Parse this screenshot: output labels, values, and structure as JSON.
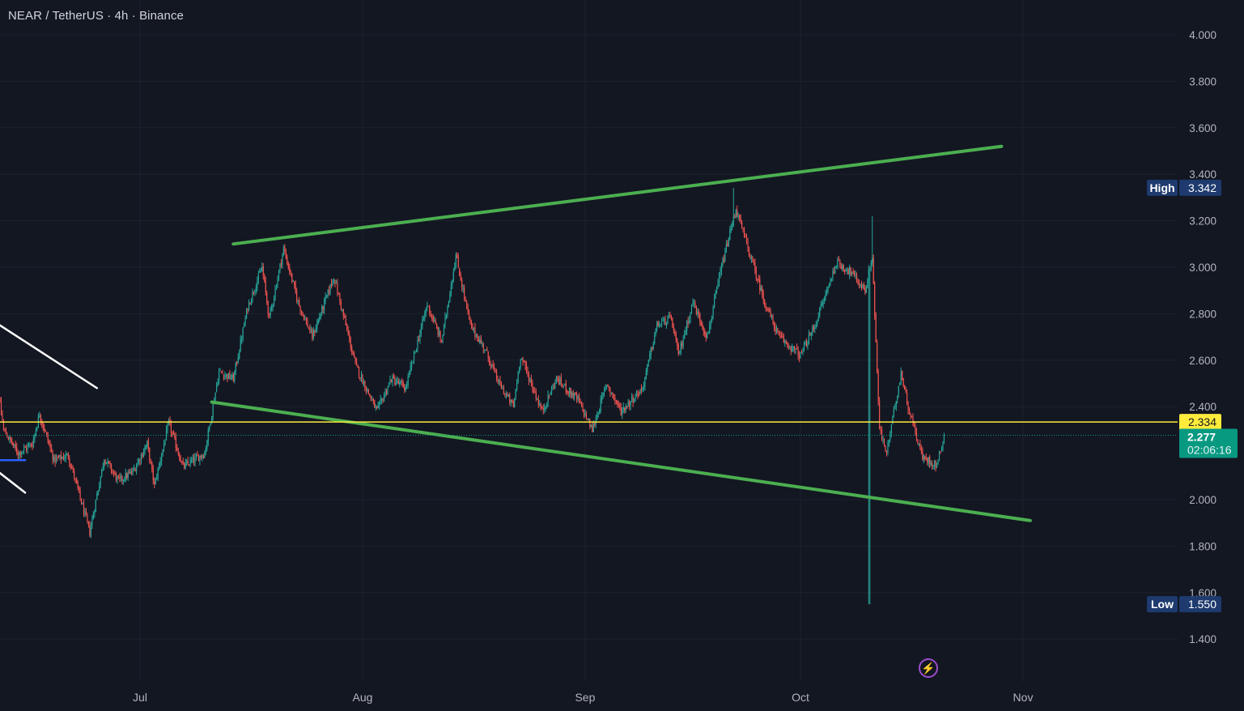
{
  "header": {
    "symbol_title": "NEAR / TetherUS · 4h · Binance"
  },
  "price_axis": {
    "ticks": [
      "4.000",
      "3.800",
      "3.600",
      "3.400",
      "3.200",
      "3.000",
      "2.800",
      "2.600",
      "2.400",
      "2.000",
      "1.800",
      "1.600",
      "1.400"
    ]
  },
  "time_axis": {
    "ticks": [
      "Jul",
      "Aug",
      "Sep",
      "Oct",
      "Nov"
    ]
  },
  "badges": {
    "high_label": "High",
    "high_value": "3.342",
    "low_label": "Low",
    "low_value": "1.550",
    "level_value": "2.334",
    "last_price": "2.277",
    "countdown": "02:06:16"
  },
  "flash_icon": "lightning-icon",
  "colors": {
    "background": "#131722",
    "grid": "#1e222d",
    "axis_text": "#b2b5be",
    "candle_up": "#26a69a",
    "candle_down": "#ef5350",
    "channel_line": "#4caf50",
    "level_line": "#ffeb3b",
    "trend_line_white": "#ffffff",
    "last_price_bg": "#089981",
    "hl_badge_bg": "#1e3a6e"
  },
  "chart_data": {
    "type": "candlestick",
    "symbol": "NEAR/USDT",
    "interval": "4h",
    "exchange": "Binance",
    "x_ticks": [
      "Jul",
      "Aug",
      "Sep",
      "Oct",
      "Nov"
    ],
    "y_ticks": [
      1.4,
      1.6,
      1.8,
      2.0,
      2.4,
      2.6,
      2.8,
      3.0,
      3.2,
      3.4,
      3.6,
      3.8,
      4.0
    ],
    "ylim": [
      1.33,
      4.08
    ],
    "period_high": 3.342,
    "period_low": 1.55,
    "last_price": 2.277,
    "horizontal_level": 2.334,
    "close_path": [
      {
        "d": "Jun 10",
        "p": 2.72
      },
      {
        "d": "Jun 12",
        "p": 2.3
      },
      {
        "d": "Jun 14",
        "p": 2.2
      },
      {
        "d": "Jun 16",
        "p": 2.24
      },
      {
        "d": "Jun 17",
        "p": 2.37
      },
      {
        "d": "Jun 19",
        "p": 2.17
      },
      {
        "d": "Jun 21",
        "p": 2.19
      },
      {
        "d": "Jun 24",
        "p": 1.86
      },
      {
        "d": "Jun 26",
        "p": 2.18
      },
      {
        "d": "Jun 28",
        "p": 2.08
      },
      {
        "d": "Jun 30",
        "p": 2.12
      },
      {
        "d": "Jul 2",
        "p": 2.24
      },
      {
        "d": "Jul 3",
        "p": 2.06
      },
      {
        "d": "Jul 5",
        "p": 2.33
      },
      {
        "d": "Jul 7",
        "p": 2.14
      },
      {
        "d": "Jul 10",
        "p": 2.2
      },
      {
        "d": "Jul 12",
        "p": 2.55
      },
      {
        "d": "Jul 14",
        "p": 2.52
      },
      {
        "d": "Jul 16",
        "p": 2.83
      },
      {
        "d": "Jul 18",
        "p": 3.0
      },
      {
        "d": "Jul 19",
        "p": 2.78
      },
      {
        "d": "Jul 21",
        "p": 3.08
      },
      {
        "d": "Jul 23",
        "p": 2.85
      },
      {
        "d": "Jul 25",
        "p": 2.7
      },
      {
        "d": "Jul 28",
        "p": 2.96
      },
      {
        "d": "Jul 31",
        "p": 2.58
      },
      {
        "d": "Aug 3",
        "p": 2.38
      },
      {
        "d": "Aug 5",
        "p": 2.52
      },
      {
        "d": "Aug 7",
        "p": 2.48
      },
      {
        "d": "Aug 10",
        "p": 2.84
      },
      {
        "d": "Aug 12",
        "p": 2.68
      },
      {
        "d": "Aug 14",
        "p": 3.05
      },
      {
        "d": "Aug 16",
        "p": 2.75
      },
      {
        "d": "Aug 18",
        "p": 2.65
      },
      {
        "d": "Aug 20",
        "p": 2.5
      },
      {
        "d": "Aug 22",
        "p": 2.4
      },
      {
        "d": "Aug 23",
        "p": 2.62
      },
      {
        "d": "Aug 26",
        "p": 2.38
      },
      {
        "d": "Aug 28",
        "p": 2.52
      },
      {
        "d": "Aug 31",
        "p": 2.43
      },
      {
        "d": "Sep 2",
        "p": 2.3
      },
      {
        "d": "Sep 4",
        "p": 2.5
      },
      {
        "d": "Sep 6",
        "p": 2.38
      },
      {
        "d": "Sep 9",
        "p": 2.48
      },
      {
        "d": "Sep 11",
        "p": 2.75
      },
      {
        "d": "Sep 13",
        "p": 2.78
      },
      {
        "d": "Sep 14",
        "p": 2.62
      },
      {
        "d": "Sep 16",
        "p": 2.85
      },
      {
        "d": "Sep 18",
        "p": 2.7
      },
      {
        "d": "Sep 20",
        "p": 3.0
      },
      {
        "d": "Sep 22",
        "p": 3.25
      },
      {
        "d": "Sep 24",
        "p": 3.05
      },
      {
        "d": "Sep 26",
        "p": 2.85
      },
      {
        "d": "Sep 28",
        "p": 2.7
      },
      {
        "d": "Oct 1",
        "p": 2.62
      },
      {
        "d": "Oct 3",
        "p": 2.75
      },
      {
        "d": "Oct 6",
        "p": 3.02
      },
      {
        "d": "Oct 8",
        "p": 2.98
      },
      {
        "d": "Oct 10",
        "p": 2.9
      },
      {
        "d": "Oct 11",
        "p": 3.05
      },
      {
        "d": "Oct 12",
        "p": 2.3
      },
      {
        "d": "Oct 13",
        "p": 2.2
      },
      {
        "d": "Oct 15",
        "p": 2.55
      },
      {
        "d": "Oct 16",
        "p": 2.4
      },
      {
        "d": "Oct 18",
        "p": 2.18
      },
      {
        "d": "Oct 20",
        "p": 2.15
      },
      {
        "d": "Oct 21",
        "p": 2.277
      }
    ],
    "drawings": [
      {
        "type": "trendline",
        "color": "green",
        "from": {
          "d": "Jul 14",
          "p": 3.1
        },
        "to": {
          "d": "Oct 29",
          "p": 3.52
        }
      },
      {
        "type": "trendline",
        "color": "green",
        "from": {
          "d": "Jul 11",
          "p": 2.42
        },
        "to": {
          "d": "Nov 2",
          "p": 1.91
        }
      },
      {
        "type": "trendline",
        "color": "white",
        "from": {
          "d": "Jun 10",
          "p": 2.78
        },
        "to": {
          "d": "Jun 25",
          "p": 2.48
        }
      },
      {
        "type": "trendline",
        "color": "white",
        "from": {
          "d": "Jun 10",
          "p": 2.15
        },
        "to": {
          "d": "Jun 15",
          "p": 2.03
        }
      },
      {
        "type": "horizontal",
        "color": "blue",
        "from": {
          "d": "Jun 11",
          "p": 2.17
        },
        "to": {
          "d": "Jun 15",
          "p": 2.17
        }
      }
    ]
  }
}
